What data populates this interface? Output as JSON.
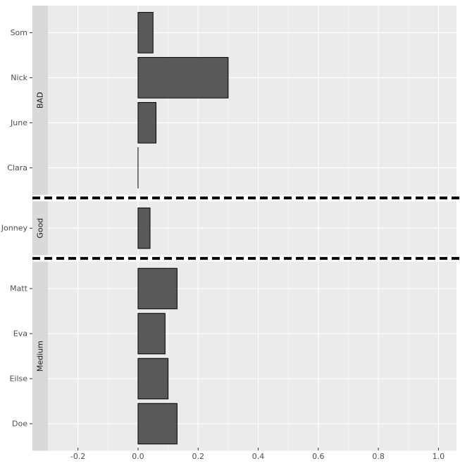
{
  "chart_data": {
    "type": "bar",
    "orientation": "horizontal",
    "facet_direction": "rows",
    "facets": [
      {
        "label": "BAD",
        "categories": [
          "Som",
          "Nick",
          "June",
          "Clara"
        ],
        "values": [
          0.05,
          0.3,
          0.06,
          0.0
        ]
      },
      {
        "label": "Good",
        "categories": [
          "Jonney"
        ],
        "values": [
          0.04
        ]
      },
      {
        "label": "Medium",
        "categories": [
          "Matt",
          "Eva",
          "Eilse",
          "Doe"
        ],
        "values": [
          0.13,
          0.09,
          0.1,
          0.13
        ]
      }
    ],
    "x_ticks": [
      -0.2,
      0.0,
      0.2,
      0.4,
      0.6,
      0.8,
      1.0
    ],
    "x_tick_labels": [
      "-0.2",
      "0.0",
      "0.2",
      "0.4",
      "0.6",
      "0.8",
      "1.0"
    ],
    "xlim": [
      -0.3,
      1.06
    ],
    "xlabel": "",
    "ylabel": "",
    "title": "",
    "grid": true,
    "legend": "none",
    "facet_separator": "dashed",
    "colors": {
      "bar_fill": "#595959",
      "bar_outline": "#000000",
      "panel_bg": "#ebebeb",
      "strip_bg": "#d9d9d9",
      "grid_major": "#ffffff",
      "separator": "#000000"
    }
  }
}
